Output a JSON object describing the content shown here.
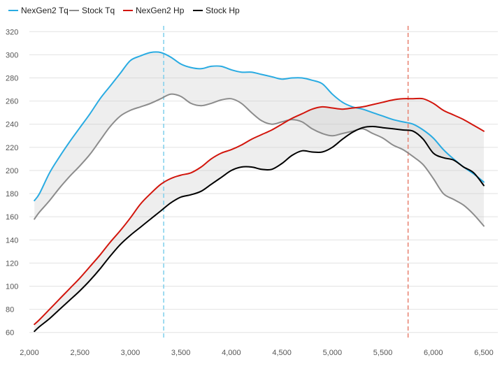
{
  "chart_data": {
    "type": "line",
    "title": "",
    "xlabel": "",
    "ylabel": "",
    "xlim": [
      2000,
      6500
    ],
    "ylim": [
      55,
      325
    ],
    "x_ticks": [
      2000,
      2500,
      3000,
      3500,
      4000,
      4500,
      5000,
      5500,
      6000,
      6500
    ],
    "x_tick_labels": [
      "2,000",
      "2,500",
      "3,000",
      "3,500",
      "4,000",
      "4,500",
      "5,000",
      "5,500",
      "6,000",
      "6,500"
    ],
    "y_ticks": [
      60,
      80,
      100,
      120,
      140,
      160,
      180,
      200,
      220,
      240,
      260,
      280,
      300,
      320
    ],
    "grid": true,
    "legend_position": "top-left",
    "series": [
      {
        "name": "NexGen2 Tq",
        "color": "#29abe2",
        "x": [
          2050,
          2100,
          2200,
          2300,
          2400,
          2500,
          2600,
          2700,
          2800,
          2900,
          3000,
          3100,
          3200,
          3300,
          3400,
          3500,
          3600,
          3700,
          3800,
          3900,
          4000,
          4100,
          4200,
          4300,
          4400,
          4500,
          4600,
          4700,
          4800,
          4900,
          5000,
          5100,
          5200,
          5300,
          5400,
          5500,
          5600,
          5700,
          5800,
          5900,
          6000,
          6100,
          6200,
          6300,
          6400,
          6500
        ],
        "values": [
          174,
          180,
          198,
          212,
          225,
          237,
          249,
          262,
          273,
          284,
          295,
          299,
          302,
          302,
          298,
          292,
          289,
          288,
          290,
          290,
          287,
          285,
          285,
          283,
          281,
          279,
          280,
          280,
          278,
          275,
          266,
          259,
          255,
          253,
          250,
          247,
          244,
          242,
          240,
          235,
          228,
          218,
          210,
          203,
          197,
          190
        ]
      },
      {
        "name": "Stock Tq",
        "color": "#8c8c8c",
        "x": [
          2050,
          2100,
          2200,
          2300,
          2400,
          2500,
          2600,
          2700,
          2800,
          2900,
          3000,
          3100,
          3200,
          3300,
          3400,
          3500,
          3600,
          3700,
          3800,
          3900,
          4000,
          4100,
          4200,
          4300,
          4400,
          4500,
          4600,
          4700,
          4800,
          4900,
          5000,
          5100,
          5200,
          5300,
          5400,
          5500,
          5600,
          5700,
          5800,
          5900,
          6000,
          6100,
          6200,
          6300,
          6400,
          6500
        ],
        "values": [
          158,
          164,
          174,
          185,
          195,
          204,
          214,
          226,
          238,
          247,
          252,
          255,
          258,
          262,
          266,
          264,
          258,
          256,
          258,
          261,
          262,
          258,
          250,
          243,
          240,
          242,
          244,
          242,
          236,
          232,
          230,
          232,
          234,
          236,
          232,
          228,
          222,
          218,
          212,
          205,
          193,
          180,
          175,
          170,
          162,
          152
        ]
      },
      {
        "name": "NexGen2 Hp",
        "color": "#d2150c",
        "x": [
          2050,
          2100,
          2200,
          2300,
          2400,
          2500,
          2600,
          2700,
          2800,
          2900,
          3000,
          3100,
          3200,
          3300,
          3400,
          3500,
          3600,
          3700,
          3800,
          3900,
          4000,
          4100,
          4200,
          4300,
          4400,
          4500,
          4600,
          4700,
          4800,
          4900,
          5000,
          5100,
          5200,
          5300,
          5400,
          5500,
          5600,
          5700,
          5800,
          5900,
          6000,
          6100,
          6200,
          6300,
          6400,
          6500
        ],
        "values": [
          67,
          71,
          80,
          89,
          98,
          107,
          117,
          127,
          138,
          148,
          159,
          171,
          180,
          188,
          193,
          196,
          198,
          203,
          210,
          215,
          218,
          222,
          227,
          231,
          235,
          240,
          245,
          249,
          253,
          255,
          254,
          253,
          254,
          255,
          257,
          259,
          261,
          262,
          262,
          262,
          258,
          252,
          248,
          244,
          239,
          234
        ]
      },
      {
        "name": "Stock Hp",
        "color": "#000000",
        "x": [
          2050,
          2100,
          2200,
          2300,
          2400,
          2500,
          2600,
          2700,
          2800,
          2900,
          3000,
          3100,
          3200,
          3300,
          3400,
          3500,
          3600,
          3700,
          3800,
          3900,
          4000,
          4100,
          4200,
          4300,
          4400,
          4500,
          4600,
          4700,
          4800,
          4900,
          5000,
          5100,
          5200,
          5300,
          5400,
          5500,
          5600,
          5700,
          5800,
          5900,
          6000,
          6100,
          6200,
          6300,
          6400,
          6500
        ],
        "values": [
          61,
          65,
          72,
          80,
          88,
          96,
          105,
          115,
          126,
          136,
          144,
          151,
          158,
          165,
          172,
          177,
          179,
          182,
          188,
          194,
          200,
          203,
          203,
          201,
          201,
          206,
          213,
          217,
          216,
          216,
          220,
          227,
          233,
          237,
          238,
          237,
          236,
          235,
          234,
          227,
          215,
          211,
          209,
          203,
          198,
          187
        ]
      }
    ],
    "fill_between": [
      [
        "NexGen2 Tq",
        "Stock Tq"
      ],
      [
        "NexGen2 Hp",
        "Stock Hp"
      ]
    ],
    "annotations": [
      {
        "type": "vline",
        "x": 3330,
        "color": "#7ecfec",
        "style": "dashed"
      },
      {
        "type": "vline",
        "x": 5750,
        "color": "#e8806f",
        "style": "dashed"
      }
    ]
  }
}
